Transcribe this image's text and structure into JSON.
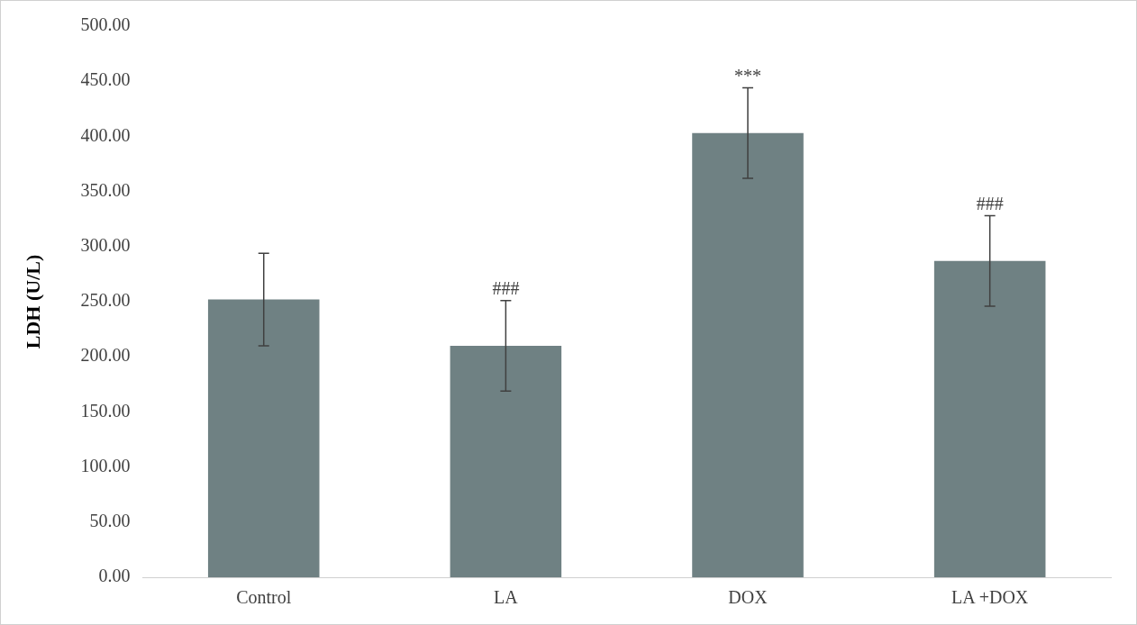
{
  "chart_data": {
    "type": "bar",
    "ylabel": "LDH (U/L)",
    "categories": [
      "Control",
      "LA",
      "DOX",
      "LA +DOX"
    ],
    "values": [
      252,
      210,
      403,
      287
    ],
    "errors": [
      42,
      41,
      41,
      41
    ],
    "color": "#6f8183",
    "ylim": [
      0,
      500
    ],
    "yticks": [
      {
        "value": 0,
        "label": "0.00"
      },
      {
        "value": 50,
        "label": "50.00"
      },
      {
        "value": 100,
        "label": "100.00"
      },
      {
        "value": 150,
        "label": "150.00"
      },
      {
        "value": 200,
        "label": "200.00"
      },
      {
        "value": 250,
        "label": "250.00"
      },
      {
        "value": 300,
        "label": "300.00"
      },
      {
        "value": 350,
        "label": "350.00"
      },
      {
        "value": 400,
        "label": "400.00"
      },
      {
        "value": 450,
        "label": "450.00"
      },
      {
        "value": 500,
        "label": "500.00"
      }
    ],
    "grid": false,
    "legend": false,
    "annotations": [
      {
        "text": "###",
        "x": "LA",
        "y": 251
      },
      {
        "text": "***",
        "x": "DOX",
        "y": 444
      },
      {
        "text": "###",
        "x": "LA +DOX",
        "y": 328
      }
    ]
  }
}
